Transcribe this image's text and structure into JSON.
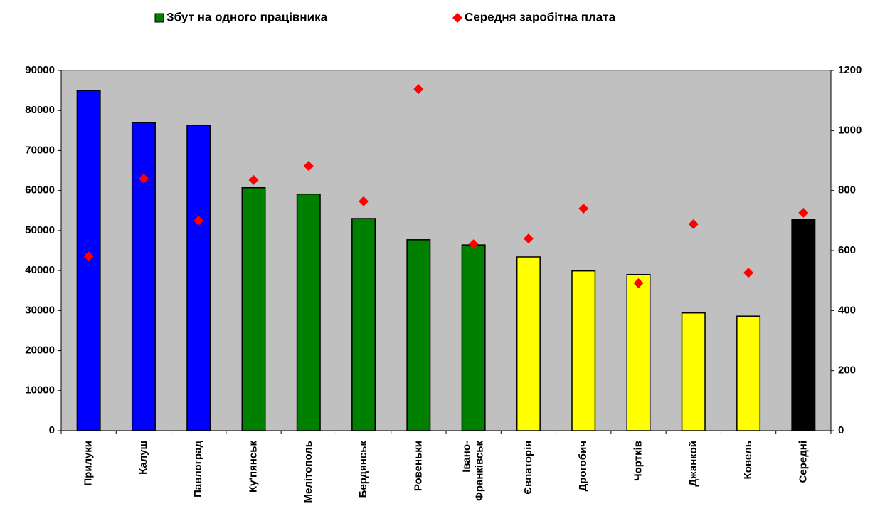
{
  "chart_data": {
    "type": "bar",
    "categories": [
      "Прилуки",
      "Калуш",
      "Павлоград",
      "Ку'пянськ",
      "Мелітополь",
      "Бердянськ",
      "Ровеньки",
      "Івано-Франківськ",
      "Євпаторія",
      "Дрогобич",
      "Чортків",
      "Джанкой",
      "Ковель",
      "Середні"
    ],
    "series": [
      {
        "name": "Збут на одного працівника",
        "type": "bar",
        "color": "#008000",
        "colors": [
          "#0000ff",
          "#0000ff",
          "#0000ff",
          "#008000",
          "#008000",
          "#008000",
          "#008000",
          "#008000",
          "#ffff00",
          "#ffff00",
          "#ffff00",
          "#ffff00",
          "#ffff00",
          "#000000"
        ],
        "values": [
          85000,
          77000,
          76300,
          60700,
          59100,
          53000,
          47700,
          46400,
          43400,
          39900,
          39000,
          29400,
          28600,
          52700
        ]
      },
      {
        "name": "Середня заробітна плата",
        "type": "scatter",
        "axis": "y2",
        "color": "#ff0000",
        "values": [
          581,
          840,
          700,
          835,
          882,
          764,
          1138,
          621,
          640,
          740,
          491,
          688,
          526,
          726
        ]
      }
    ],
    "ylim": [
      0,
      90000
    ],
    "yticks": [
      0,
      10000,
      20000,
      30000,
      40000,
      50000,
      60000,
      70000,
      80000,
      90000
    ],
    "y2lim": [
      0,
      1200
    ],
    "y2ticks": [
      0,
      200,
      400,
      600,
      800,
      1000,
      1200
    ],
    "plot_background": "#c0c0c0",
    "grid": false,
    "legend": "top"
  }
}
